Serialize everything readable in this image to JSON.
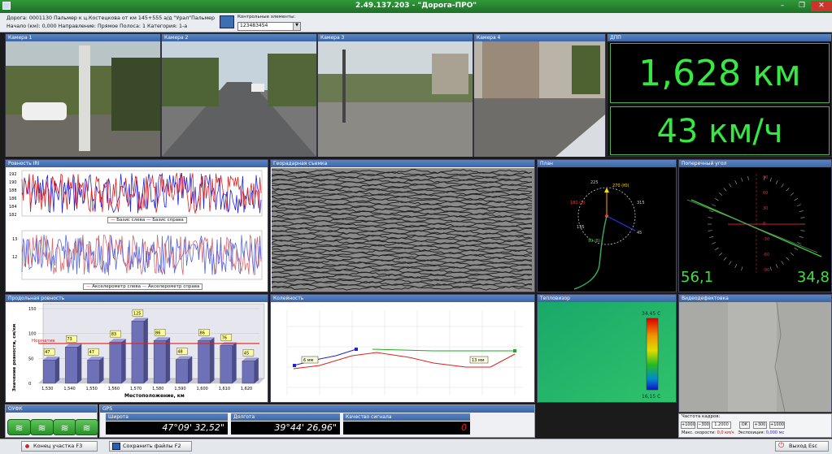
{
  "window": {
    "title": "2.49.137.203 - \"Дорога-ПРО\"",
    "min": "–",
    "max": "❐",
    "close": "✕"
  },
  "info": {
    "line1": "Дорога: 0001130   Пальмер к ц.Костецкова от км 145+555 а/д \"Урал\"Пальмер",
    "line2": "Начало (км): 0,000     Направление: Прямое     Полоса: 1     Категория: 1-а",
    "control_label": "Контрольные элементы:",
    "control_value": "123483454"
  },
  "cameras": [
    "Камера 1",
    "Камера 2",
    "Камера 3",
    "Камера 4"
  ],
  "dpp": {
    "title": "ДПП",
    "distance": "1,628 км",
    "speed": "43 км/ч"
  },
  "evenness_iri": {
    "title": "Ровность IRI",
    "yticks_top": [
      "192",
      "190",
      "188",
      "186",
      "184",
      "182"
    ],
    "yticks_bottom": [
      "13",
      "12"
    ],
    "legend1a": "Базис слева",
    "legend1b": "Базис справа",
    "legend2a": "Акселерометр слева",
    "legend2b": "Акселерометр справа"
  },
  "georadar": {
    "title": "Георадарная съемка"
  },
  "plan": {
    "title": "План",
    "labels": [
      "225",
      "270 (Ю)",
      "315",
      "180 (З)",
      "135",
      "90 (В)",
      "45"
    ]
  },
  "profile": {
    "title": "Поперечный угол",
    "left_value": "56,1",
    "right_value": "34,8",
    "ticks": [
      "90",
      "60",
      "30",
      "0",
      "-30",
      "-60",
      "-90"
    ]
  },
  "long_evenness": {
    "title": "Продольная ровность",
    "chart_data": {
      "type": "bar",
      "categories": [
        "1,530",
        "1,540",
        "1,550",
        "1,560",
        "1,570",
        "1,580",
        "1,590",
        "1,600",
        "1,610",
        "1,620"
      ],
      "values": [
        47,
        73,
        47,
        83,
        125,
        86,
        48,
        86,
        76,
        45
      ],
      "xlabel": "Местоположение, км",
      "ylabel": "Значение ровности, см/км",
      "ylim": [
        0,
        150
      ],
      "yticks": [
        "150",
        "100",
        "50",
        "0"
      ],
      "norm_label": "Норматив",
      "norm_value": 80
    }
  },
  "rut": {
    "title": "Колейность",
    "label_left": "6 мм",
    "label_right": "13 мм"
  },
  "thermal": {
    "title": "Тепловизор",
    "max": "34,45 С",
    "min": "16,15 С"
  },
  "video": {
    "title": "Видеодефектовка",
    "frame_rate_label": "Частота кадров:",
    "btns": [
      "+1000",
      "−300",
      "1.2000",
      "ОК",
      "+300",
      "+1000"
    ],
    "speed_label": "Макс. скорости:",
    "speed_value": "0,0 км/ч",
    "exposure_label": "Экспозиция:",
    "exposure_value": "0,000 мс"
  },
  "oufk": {
    "title": "ОУФК"
  },
  "gps": {
    "title": "GPS",
    "lat_label": "Широта",
    "lat": "47°09' 32,52\"",
    "lon_label": "Долгота",
    "lon": "39°44' 26,96\"",
    "quality_label": "Качество сигнала",
    "quality": "0"
  },
  "status": {
    "end_btn": "Конец участка   F3",
    "save_btn": "Сохранить файлы   F2",
    "exit_btn": "Выход   Esc"
  }
}
